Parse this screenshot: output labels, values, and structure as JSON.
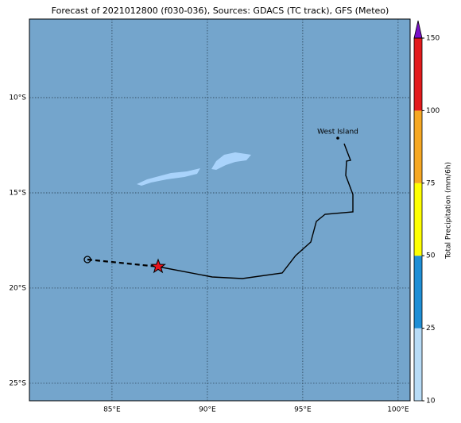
{
  "title": "Forecast of 2021012800 (f030-036), Sources: GDACS (TC track), GFS (Meteo)",
  "map": {
    "lonlim": [
      80.67,
      100.63
    ],
    "latlim": [
      -25.92,
      -5.875
    ],
    "lon_ticks": [
      {
        "value": 85,
        "label": "85°E"
      },
      {
        "value": 90,
        "label": "90°E"
      },
      {
        "value": 95,
        "label": "95°E"
      },
      {
        "value": 100,
        "label": "100°E"
      }
    ],
    "lat_ticks": [
      {
        "value": -10,
        "label": "10°S"
      },
      {
        "value": -15,
        "label": "15°S"
      },
      {
        "value": -20,
        "label": "20°S"
      },
      {
        "value": -25,
        "label": "25°S"
      }
    ],
    "place": "West Island"
  },
  "colorbar": {
    "label": "Total Precipitation (mm/6h)",
    "ticks": [
      10,
      25,
      50,
      75,
      100,
      150
    ],
    "colors": [
      "#b8dcf7",
      "#1f8fd6",
      "#ffff00",
      "#f7a823",
      "#e31a1c"
    ],
    "extend_color": "#7a10c8"
  }
}
